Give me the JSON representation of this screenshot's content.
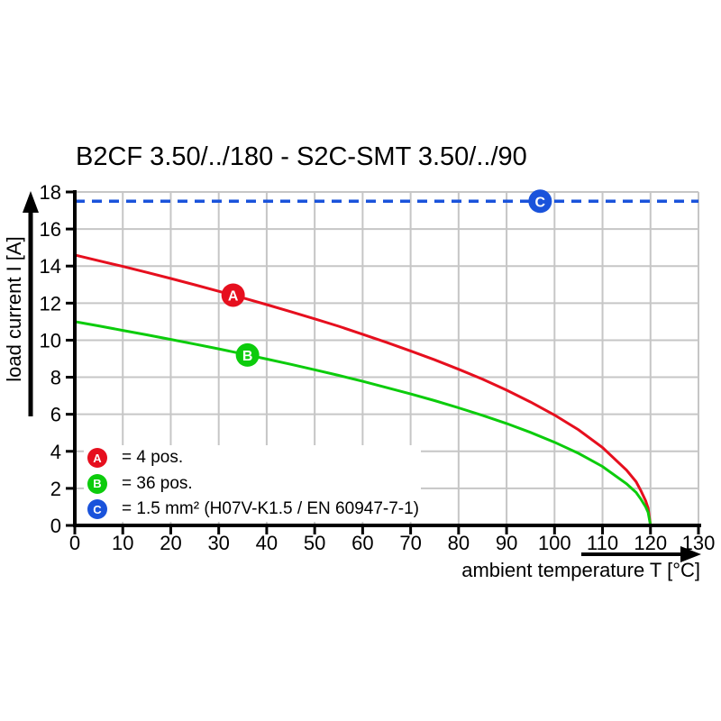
{
  "title": "B2CF 3.50/../180 - S2C-SMT 3.50/../90",
  "colors": {
    "series_a_red": "#e60f1e",
    "series_b_green": "#0ccc0c",
    "series_c_blue": "#1a53db",
    "grid": "#c6c6c6",
    "axis": "#000000",
    "background": "#ffffff",
    "marker_letter": "#ffffff"
  },
  "chart_data": {
    "type": "line",
    "title": "B2CF 3.50/../180 - S2C-SMT 3.50/../90",
    "xlabel": "ambient temperature T [°C]",
    "ylabel": "load current I [A]",
    "xlim": [
      0,
      130
    ],
    "ylim": [
      0,
      18
    ],
    "x_ticks": [
      0,
      10,
      20,
      30,
      40,
      50,
      60,
      70,
      80,
      90,
      100,
      110,
      120,
      130
    ],
    "y_ticks": [
      0,
      2,
      4,
      6,
      8,
      10,
      12,
      14,
      16,
      18
    ],
    "grid": true,
    "legend_position": "inside-bottom-left",
    "series": [
      {
        "name": "A",
        "label": "= 4 pos.",
        "color": "#e60f1e",
        "style": "solid",
        "marker": {
          "letter": "A",
          "t": 33,
          "i": 12.43
        },
        "points": [
          [
            0,
            14.6
          ],
          [
            5,
            14.29
          ],
          [
            10,
            13.98
          ],
          [
            15,
            13.66
          ],
          [
            20,
            13.33
          ],
          [
            25,
            12.99
          ],
          [
            30,
            12.64
          ],
          [
            35,
            12.29
          ],
          [
            40,
            11.92
          ],
          [
            45,
            11.54
          ],
          [
            50,
            11.15
          ],
          [
            55,
            10.75
          ],
          [
            60,
            10.32
          ],
          [
            65,
            9.88
          ],
          [
            70,
            9.42
          ],
          [
            75,
            8.94
          ],
          [
            80,
            8.43
          ],
          [
            85,
            7.89
          ],
          [
            90,
            7.3
          ],
          [
            95,
            6.66
          ],
          [
            100,
            5.96
          ],
          [
            105,
            5.16
          ],
          [
            110,
            4.21
          ],
          [
            115,
            2.98
          ],
          [
            117,
            2.36
          ],
          [
            118,
            1.88
          ],
          [
            119,
            1.33
          ],
          [
            119.5,
            0.94
          ],
          [
            120,
            0
          ]
        ]
      },
      {
        "name": "B",
        "label": "= 36 pos.",
        "color": "#0ccc0c",
        "style": "solid",
        "marker": {
          "letter": "B",
          "t": 36,
          "i": 9.2
        },
        "points": [
          [
            0,
            11.0
          ],
          [
            5,
            10.77
          ],
          [
            10,
            10.53
          ],
          [
            15,
            10.29
          ],
          [
            20,
            10.04
          ],
          [
            25,
            9.79
          ],
          [
            30,
            9.53
          ],
          [
            35,
            9.26
          ],
          [
            40,
            8.98
          ],
          [
            45,
            8.7
          ],
          [
            50,
            8.4
          ],
          [
            55,
            8.1
          ],
          [
            60,
            7.78
          ],
          [
            65,
            7.44
          ],
          [
            70,
            7.1
          ],
          [
            75,
            6.74
          ],
          [
            80,
            6.35
          ],
          [
            85,
            5.94
          ],
          [
            90,
            5.5
          ],
          [
            95,
            5.02
          ],
          [
            100,
            4.49
          ],
          [
            105,
            3.89
          ],
          [
            110,
            3.18
          ],
          [
            115,
            2.25
          ],
          [
            117,
            1.78
          ],
          [
            118,
            1.42
          ],
          [
            119,
            1.0
          ],
          [
            119.5,
            0.71
          ],
          [
            120,
            0
          ]
        ]
      },
      {
        "name": "C",
        "label": "= 1.5 mm² (H07V-K1.5 / EN 60947-7-1)",
        "color": "#1a53db",
        "style": "dashed",
        "limit_value": 17.5,
        "marker": {
          "letter": "C",
          "t": 97,
          "i": 17.5
        },
        "points": [
          [
            0,
            17.5
          ],
          [
            130,
            17.5
          ]
        ]
      }
    ]
  }
}
